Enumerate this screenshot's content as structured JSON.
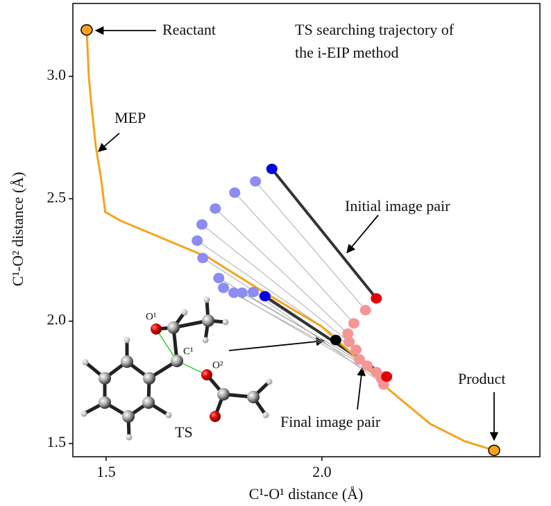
{
  "chart_data": {
    "type": "scatter",
    "title_lines": [
      "TS searching trajectory of",
      "the i-EIP method"
    ],
    "x_label": "C¹-O¹ distance (Å)",
    "y_label": "C¹-O² distance (Å)",
    "xlim": [
      1.423,
      2.505
    ],
    "ylim": [
      1.446,
      3.298
    ],
    "xticks": [
      1.5,
      {
        "value": 2,
        "label": "2.0"
      }
    ],
    "yticks": [
      1.5,
      {
        "value": 2,
        "label": "2.0"
      },
      2.5,
      {
        "value": 3,
        "label": "3.0"
      }
    ],
    "series": [
      {
        "type": "line",
        "color": "#f5a31a",
        "x": [
          1.455,
          1.46,
          1.465,
          1.476,
          1.489,
          1.498,
          1.535,
          1.736,
          1.865,
          2.0,
          2.09,
          2.154,
          2.251,
          2.331,
          2.399
        ],
        "values": [
          3.19,
          3.0,
          2.9,
          2.716,
          2.574,
          2.446,
          2.409,
          2.261,
          2.119,
          1.977,
          1.835,
          1.722,
          1.58,
          1.509,
          1.472
        ]
      },
      {
        "type": "scatter",
        "color": "#f5a31a",
        "x": [
          1.455,
          2.399
        ],
        "values": [
          3.19,
          1.472
        ]
      },
      {
        "type": "scatter",
        "colors": [
          "#0000e0",
          "#8c8cf2",
          "#8c8cf2",
          "#8c8cf2",
          "#8c8cf2",
          "#8c8cf2",
          "#8c8cf2",
          "#8c8cf2",
          "#8c8cf2",
          "#8c8cf2",
          "#8c8cf2",
          "#8c8cf2",
          "#0000e0"
        ],
        "x": [
          1.884,
          1.846,
          1.798,
          1.753,
          1.722,
          1.711,
          1.724,
          1.761,
          1.772,
          1.796,
          1.815,
          1.841,
          1.868
        ],
        "values": [
          2.622,
          2.571,
          2.525,
          2.46,
          2.395,
          2.329,
          2.258,
          2.176,
          2.136,
          2.116,
          2.116,
          2.119,
          2.102
        ]
      },
      {
        "type": "scatter",
        "colors": [
          "#e30000",
          "#f59595",
          "#f59595",
          "#f59595",
          "#f59595",
          "#f59595",
          "#f59595",
          "#f59595",
          "#f59595",
          "#f59595",
          "#f59595",
          "#f59595",
          "#e30000"
        ],
        "x": [
          2.126,
          2.101,
          2.074,
          2.06,
          2.063,
          2.079,
          2.087,
          2.105,
          2.126,
          2.138,
          2.148,
          2.143,
          2.15
        ],
        "values": [
          2.093,
          2.045,
          1.991,
          1.949,
          1.915,
          1.883,
          1.843,
          1.818,
          1.792,
          1.764,
          1.775,
          1.741,
          1.773
        ]
      },
      {
        "type": "scatter",
        "color": "#000000",
        "x": [
          2.032
        ],
        "values": [
          1.923
        ]
      }
    ],
    "annotations": [
      "Reactant",
      "MEP",
      "Initial image pair",
      "Final image pair",
      "Product",
      "TS",
      "O¹",
      "C¹",
      "O²"
    ]
  }
}
